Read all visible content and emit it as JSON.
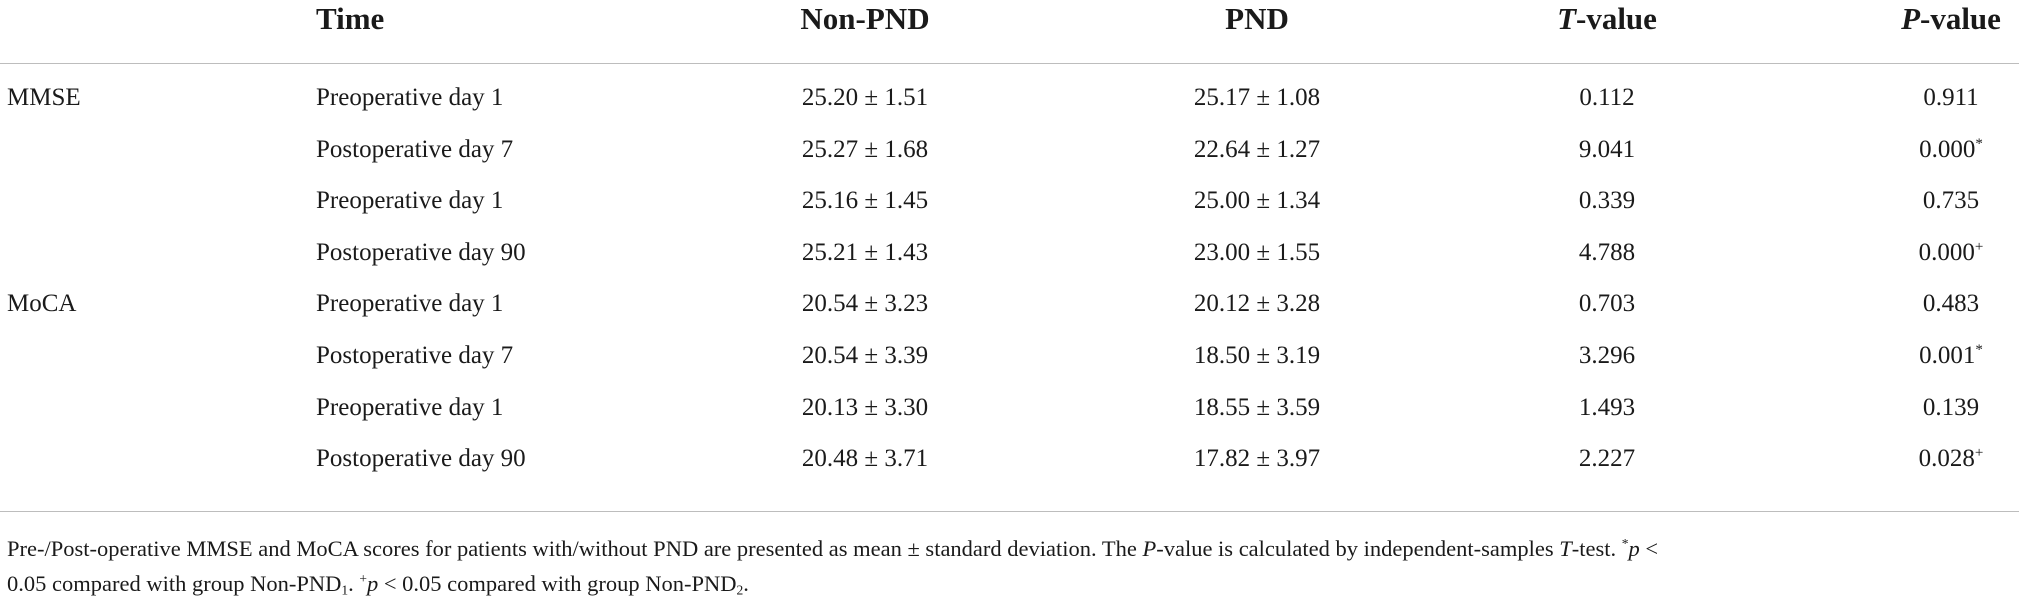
{
  "headers": {
    "group": "",
    "time": "Time",
    "non_pnd": "Non-PND",
    "pnd": "PND",
    "t_value_italic": "T",
    "t_value_rest": "-value",
    "p_value_italic": "P",
    "p_value_rest": "-value"
  },
  "rows": [
    {
      "group": "MMSE",
      "time": "Preoperative day 1",
      "non_pnd": "25.20 ± 1.51",
      "pnd": "25.17 ± 1.08",
      "t": "0.112",
      "p": "0.911",
      "mark": ""
    },
    {
      "group": "",
      "time": "Postoperative day 7",
      "non_pnd": "25.27 ± 1.68",
      "pnd": "22.64 ± 1.27",
      "t": "9.041",
      "p": "0.000",
      "mark": "*"
    },
    {
      "group": "",
      "time": "Preoperative day 1",
      "non_pnd": "25.16 ± 1.45",
      "pnd": "25.00 ± 1.34",
      "t": "0.339",
      "p": "0.735",
      "mark": ""
    },
    {
      "group": "",
      "time": "Postoperative day 90",
      "non_pnd": "25.21 ± 1.43",
      "pnd": "23.00 ± 1.55",
      "t": "4.788",
      "p": "0.000",
      "mark": "+"
    },
    {
      "group": "MoCA",
      "time": "Preoperative day 1",
      "non_pnd": "20.54 ± 3.23",
      "pnd": "20.12 ± 3.28",
      "t": "0.703",
      "p": "0.483",
      "mark": ""
    },
    {
      "group": "",
      "time": "Postoperative day 7",
      "non_pnd": "20.54 ± 3.39",
      "pnd": "18.50 ± 3.19",
      "t": "3.296",
      "p": "0.001",
      "mark": "*"
    },
    {
      "group": "",
      "time": "Preoperative day 1",
      "non_pnd": "20.13 ± 3.30",
      "pnd": "18.55 ± 3.59",
      "t": "1.493",
      "p": "0.139",
      "mark": ""
    },
    {
      "group": "",
      "time": "Postoperative day 90",
      "non_pnd": "20.48 ± 3.71",
      "pnd": "17.82 ± 3.97",
      "t": "2.227",
      "p": "0.028",
      "mark": "+"
    }
  ],
  "footnote": {
    "line1_a": "Pre-/Post-operative MMSE and MoCA scores for patients with/without PND are presented as mean ± standard deviation. The ",
    "line1_p": "P",
    "line1_b": "-value is calculated by independent-samples ",
    "line1_t": "T",
    "line1_c": "-test. ",
    "line1_star": "*",
    "line1_pp": "p",
    "line1_lt": " <",
    "line2_a": "0.05 compared with group Non-PND",
    "line2_sub1": "1",
    "line2_b": ". ",
    "line2_plus": "+",
    "line2_pp": "p",
    "line2_c": " < 0.05 compared with group Non-PND",
    "line2_sub2": "2",
    "line2_d": "."
  }
}
